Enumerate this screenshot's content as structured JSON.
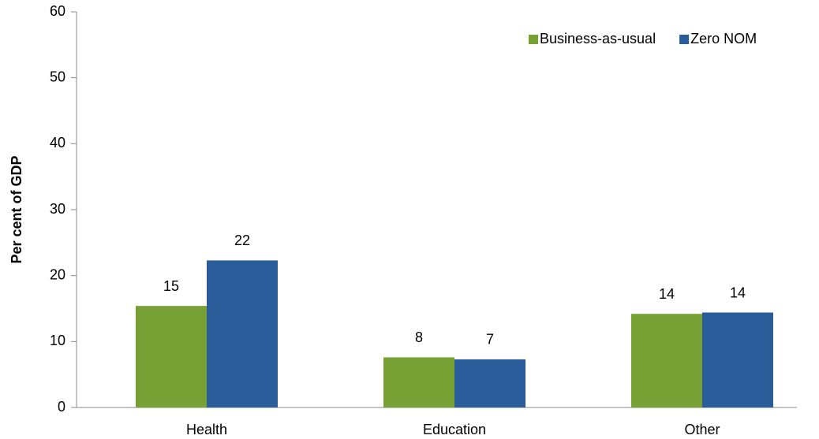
{
  "chart_data": {
    "type": "bar",
    "ylabel": "Per cent of GDP",
    "categories": [
      "Health",
      "Education",
      "Other"
    ],
    "series": [
      {
        "name": "Business-as-usual",
        "color": "#77a135",
        "values": [
          15.4,
          7.6,
          14.2
        ],
        "value_labels": [
          "15",
          "8",
          "14"
        ]
      },
      {
        "name": "Zero NOM",
        "color": "#2a5c9a",
        "values": [
          22.3,
          7.3,
          14.4
        ],
        "value_labels": [
          "22",
          "7",
          "14"
        ]
      }
    ],
    "ylim": [
      0,
      60
    ],
    "yticks": [
      0,
      10,
      20,
      30,
      40,
      50,
      60
    ],
    "grid": false,
    "legend": "upper right"
  }
}
